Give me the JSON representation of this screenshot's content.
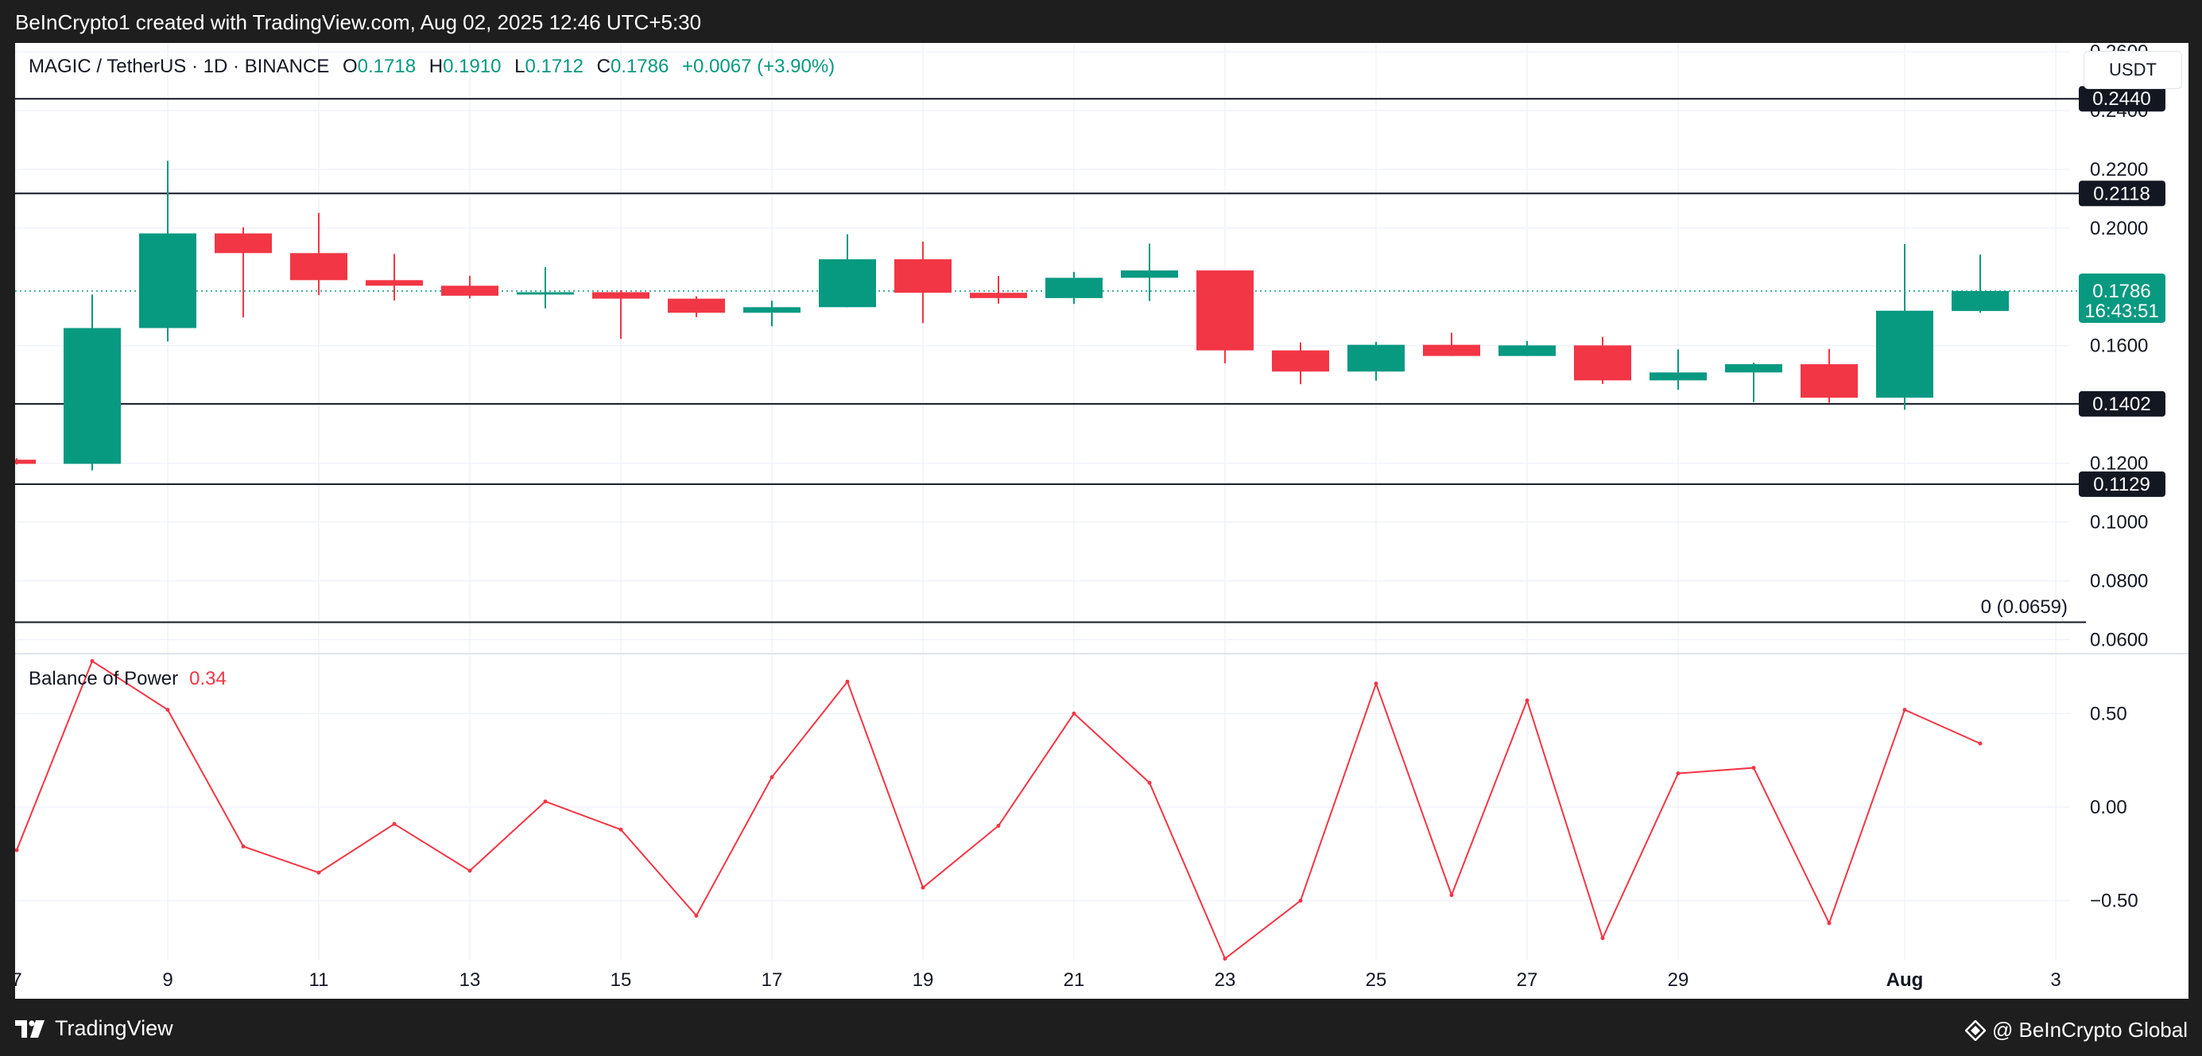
{
  "header": {
    "attribution": "BeInCrypto1 created with TradingView.com, Aug 02, 2025 12:46 UTC+5:30"
  },
  "legend": {
    "symbol": "MAGIC / TetherUS · 1D · BINANCE",
    "o_label": "O",
    "o_value": "0.1718",
    "h_label": "H",
    "h_value": "0.1910",
    "l_label": "L",
    "l_value": "0.1712",
    "c_label": "C",
    "c_value": "0.1786",
    "change": "+0.0067 (+3.90%)"
  },
  "unit_button": "USDT",
  "indicator": {
    "name": "Balance of Power",
    "value": "0.34"
  },
  "fib_label": "0 (0.0659)",
  "footer": {
    "brand": "TradingView",
    "credit": "@ BeInCrypto Global"
  },
  "colors": {
    "up": "#089981",
    "down": "#f23645",
    "line": "#131722",
    "grid": "#f0f3fa",
    "bop": "#f23645"
  },
  "chart_data": [
    {
      "type": "candlestick",
      "title": "MAGIC / TetherUS · 1D · BINANCE",
      "ylim": [
        0.0555,
        0.263
      ],
      "y_ticks": [
        "0.0600",
        "0.0800",
        "0.1000",
        "0.1200",
        "0.1600",
        "0.2000",
        "0.2200",
        "0.2400",
        "0.2600"
      ],
      "x_ticks": [
        {
          "x": 0,
          "label": "7"
        },
        {
          "x": 2,
          "label": "9"
        },
        {
          "x": 4,
          "label": "11"
        },
        {
          "x": 6,
          "label": "13"
        },
        {
          "x": 8,
          "label": "15"
        },
        {
          "x": 10,
          "label": "17"
        },
        {
          "x": 12,
          "label": "19"
        },
        {
          "x": 14,
          "label": "21"
        },
        {
          "x": 16,
          "label": "23"
        },
        {
          "x": 18,
          "label": "25"
        },
        {
          "x": 20,
          "label": "27"
        },
        {
          "x": 22,
          "label": "29"
        },
        {
          "x": 25,
          "label": "Aug"
        },
        {
          "x": 27,
          "label": "3"
        }
      ],
      "candles": [
        {
          "d": "Jul 7",
          "o": 0.1212,
          "h": 0.1217,
          "l": 0.1196,
          "c": 0.1198
        },
        {
          "d": "Jul 8",
          "o": 0.1198,
          "h": 0.1774,
          "l": 0.1176,
          "c": 0.166
        },
        {
          "d": "Jul 9",
          "o": 0.166,
          "h": 0.2229,
          "l": 0.1614,
          "c": 0.1982
        },
        {
          "d": "Jul 10",
          "o": 0.1982,
          "h": 0.2003,
          "l": 0.1696,
          "c": 0.1915
        },
        {
          "d": "Jul 11",
          "o": 0.1915,
          "h": 0.2052,
          "l": 0.1772,
          "c": 0.1823
        },
        {
          "d": "Jul 12",
          "o": 0.1823,
          "h": 0.1912,
          "l": 0.1754,
          "c": 0.1804
        },
        {
          "d": "Jul 13",
          "o": 0.1804,
          "h": 0.1838,
          "l": 0.1761,
          "c": 0.177
        },
        {
          "d": "Jul 14",
          "o": 0.1778,
          "h": 0.1867,
          "l": 0.1727,
          "c": 0.1782
        },
        {
          "d": "Jul 15",
          "o": 0.1782,
          "h": 0.1789,
          "l": 0.1623,
          "c": 0.176
        },
        {
          "d": "Jul 16",
          "o": 0.176,
          "h": 0.1768,
          "l": 0.1697,
          "c": 0.1712
        },
        {
          "d": "Jul 17",
          "o": 0.1712,
          "h": 0.1753,
          "l": 0.1666,
          "c": 0.1731
        },
        {
          "d": "Jul 18",
          "o": 0.1731,
          "h": 0.1979,
          "l": 0.1731,
          "c": 0.1894
        },
        {
          "d": "Jul 19",
          "o": 0.1894,
          "h": 0.1954,
          "l": 0.1677,
          "c": 0.178
        },
        {
          "d": "Jul 20",
          "o": 0.178,
          "h": 0.1837,
          "l": 0.1743,
          "c": 0.1762
        },
        {
          "d": "Jul 21",
          "o": 0.1762,
          "h": 0.1851,
          "l": 0.1742,
          "c": 0.1831
        },
        {
          "d": "Jul 22",
          "o": 0.1831,
          "h": 0.1947,
          "l": 0.1752,
          "c": 0.1856
        },
        {
          "d": "Jul 23",
          "o": 0.1856,
          "h": 0.1856,
          "l": 0.154,
          "c": 0.1584
        },
        {
          "d": "Jul 24",
          "o": 0.1584,
          "h": 0.1611,
          "l": 0.1469,
          "c": 0.1512
        },
        {
          "d": "Jul 25",
          "o": 0.1512,
          "h": 0.1613,
          "l": 0.1481,
          "c": 0.1603
        },
        {
          "d": "Jul 26",
          "o": 0.1603,
          "h": 0.1644,
          "l": 0.1565,
          "c": 0.1565
        },
        {
          "d": "Jul 27",
          "o": 0.1565,
          "h": 0.1616,
          "l": 0.1565,
          "c": 0.1601
        },
        {
          "d": "Jul 28",
          "o": 0.1601,
          "h": 0.163,
          "l": 0.147,
          "c": 0.1482
        },
        {
          "d": "Jul 29",
          "o": 0.1482,
          "h": 0.1587,
          "l": 0.145,
          "c": 0.1509
        },
        {
          "d": "Jul 30",
          "o": 0.1509,
          "h": 0.1542,
          "l": 0.1408,
          "c": 0.1537
        },
        {
          "d": "Jul 31",
          "o": 0.1537,
          "h": 0.1589,
          "l": 0.1406,
          "c": 0.1423
        },
        {
          "d": "Aug 1",
          "o": 0.1423,
          "h": 0.1946,
          "l": 0.1382,
          "c": 0.1719
        },
        {
          "d": "Aug 2",
          "o": 0.1718,
          "h": 0.191,
          "l": 0.1712,
          "c": 0.1786
        }
      ],
      "last_price": "0.1786",
      "countdown": "16:43:51",
      "levels": [
        {
          "value": 0.244,
          "label": "0.2440"
        },
        {
          "value": 0.2118,
          "label": "0.2118"
        },
        {
          "value": 0.1402,
          "label": "0.1402"
        },
        {
          "value": 0.1129,
          "label": "0.1129"
        },
        {
          "value": 0.0659,
          "label": ""
        }
      ]
    },
    {
      "type": "line",
      "title": "Balance of Power",
      "ylim": [
        -0.82,
        0.82
      ],
      "y_ticks": [
        {
          "v": 0.5,
          "label": "0.50"
        },
        {
          "v": 0,
          "label": "0.00"
        },
        {
          "v": -0.5,
          "label": "−0.50"
        }
      ],
      "series": [
        {
          "name": "Balance of Power",
          "values": [
            -0.23,
            0.78,
            0.52,
            -0.21,
            -0.35,
            -0.09,
            -0.34,
            0.03,
            -0.12,
            -0.58,
            0.16,
            0.67,
            -0.43,
            -0.1,
            0.5,
            0.13,
            -0.81,
            -0.5,
            0.66,
            -0.47,
            0.57,
            -0.7,
            0.18,
            0.21,
            -0.62,
            0.52,
            0.34
          ]
        }
      ]
    }
  ]
}
